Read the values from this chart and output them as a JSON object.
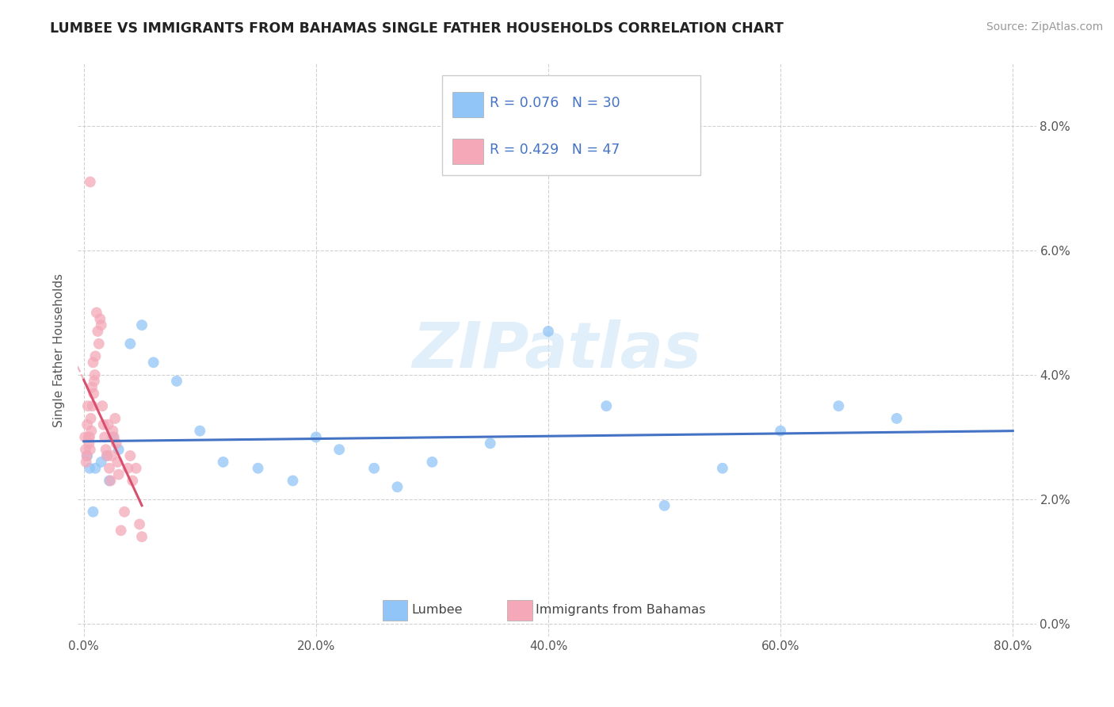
{
  "title": "LUMBEE VS IMMIGRANTS FROM BAHAMAS SINGLE FATHER HOUSEHOLDS CORRELATION CHART",
  "source": "Source: ZipAtlas.com",
  "ylabel": "Single Father Households",
  "xlabel_ticks": [
    "0.0%",
    "20.0%",
    "40.0%",
    "60.0%",
    "80.0%"
  ],
  "xlabel_vals": [
    0,
    20,
    40,
    60,
    80
  ],
  "ylabel_ticks": [
    "0.0%",
    "2.0%",
    "4.0%",
    "6.0%",
    "8.0%"
  ],
  "ylabel_vals": [
    0,
    2,
    4,
    6,
    8
  ],
  "lumbee_R": "0.076",
  "lumbee_N": "30",
  "bahamas_R": "0.429",
  "bahamas_N": "47",
  "lumbee_color": "#92c5f7",
  "bahamas_color": "#f4a8b8",
  "lumbee_line_color": "#4472c4",
  "bahamas_line_color": "#d94f6e",
  "bahamas_dashed_color": "#e8a0b0",
  "legend_text_color": "#4472c4",
  "title_color": "#222222",
  "background_color": "#ffffff",
  "grid_color": "#cccccc",
  "watermark": "ZIPatlas",
  "lumbee_x": [
    0.3,
    0.5,
    0.8,
    1.0,
    1.5,
    2.0,
    2.2,
    2.5,
    3.0,
    4.0,
    5.0,
    6.0,
    8.0,
    10.0,
    12.0,
    15.0,
    18.0,
    20.0,
    22.0,
    25.0,
    27.0,
    30.0,
    35.0,
    40.0,
    45.0,
    50.0,
    55.0,
    60.0,
    65.0,
    70.0
  ],
  "lumbee_y": [
    2.7,
    2.5,
    1.8,
    2.5,
    2.6,
    2.7,
    2.3,
    3.0,
    2.8,
    4.5,
    4.8,
    4.2,
    3.9,
    3.1,
    2.6,
    2.5,
    2.3,
    3.0,
    2.8,
    2.5,
    2.2,
    2.6,
    2.9,
    4.7,
    3.5,
    1.9,
    2.5,
    3.1,
    3.5,
    3.3
  ],
  "bahamas_x": [
    0.1,
    0.15,
    0.2,
    0.25,
    0.3,
    0.35,
    0.4,
    0.45,
    0.5,
    0.55,
    0.6,
    0.65,
    0.7,
    0.75,
    0.8,
    0.85,
    0.9,
    0.95,
    1.0,
    1.1,
    1.2,
    1.3,
    1.4,
    1.5,
    1.6,
    1.7,
    1.8,
    1.9,
    2.0,
    2.1,
    2.2,
    2.3,
    2.4,
    2.5,
    2.6,
    2.7,
    2.8,
    2.9,
    3.0,
    3.2,
    3.5,
    3.8,
    4.0,
    4.2,
    4.5,
    4.8,
    5.0
  ],
  "bahamas_y": [
    3.0,
    2.8,
    2.6,
    2.7,
    3.2,
    3.5,
    3.0,
    2.9,
    3.0,
    2.8,
    3.3,
    3.1,
    3.8,
    3.5,
    4.2,
    3.7,
    3.9,
    4.0,
    4.3,
    5.0,
    4.7,
    4.5,
    4.9,
    4.8,
    3.5,
    3.2,
    3.0,
    2.8,
    2.7,
    3.2,
    2.5,
    2.3,
    2.7,
    3.1,
    3.0,
    3.3,
    2.9,
    2.6,
    2.4,
    1.5,
    1.8,
    2.5,
    2.7,
    2.3,
    2.5,
    1.6,
    1.4
  ],
  "bahamas_extra_high_x": [
    0.55
  ],
  "bahamas_extra_high_y": [
    7.1
  ]
}
